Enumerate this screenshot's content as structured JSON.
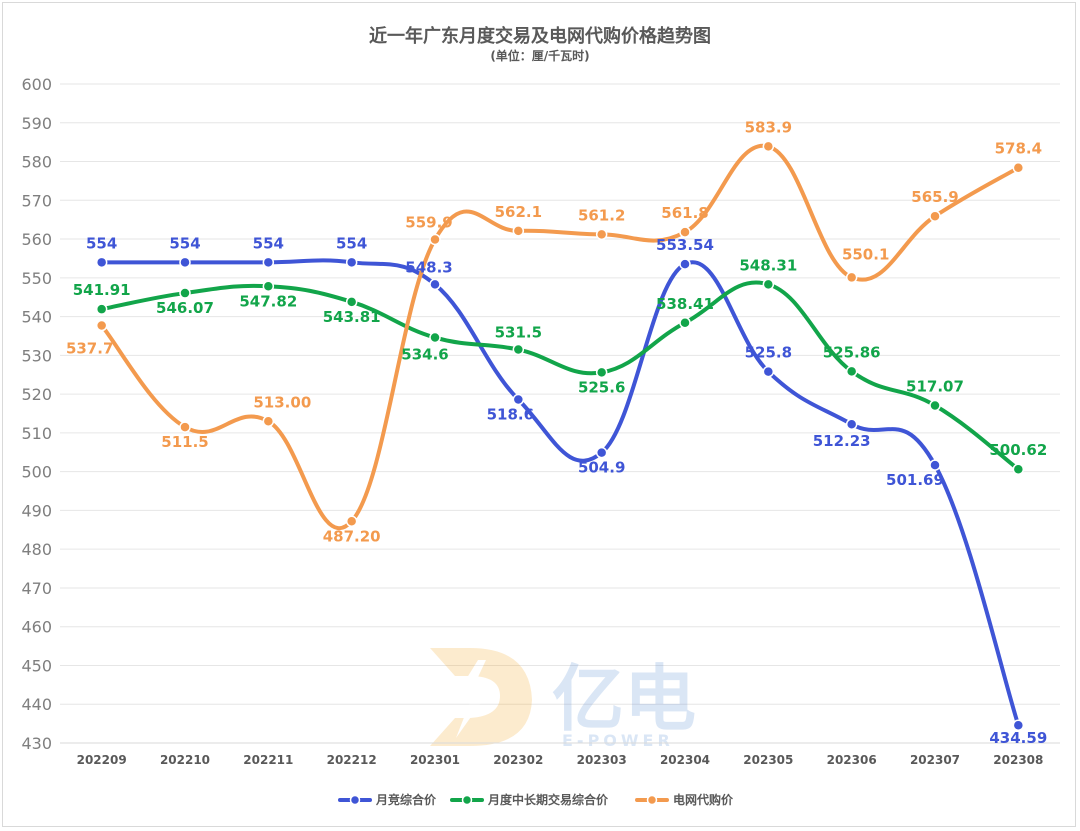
{
  "chart_data": {
    "type": "line",
    "title": "近一年广东月度交易及电网代购价格趋势图",
    "subtitle": "(单位：厘/千瓦时)",
    "categories": [
      "202209",
      "202210",
      "202211",
      "202212",
      "202301",
      "202302",
      "202303",
      "202304",
      "202305",
      "202306",
      "202307",
      "202308"
    ],
    "ylim": [
      430,
      600
    ],
    "yticks": [
      430,
      440,
      450,
      460,
      470,
      480,
      490,
      500,
      510,
      520,
      530,
      540,
      550,
      560,
      570,
      580,
      590,
      600
    ],
    "grid": true,
    "legend_position": "bottom",
    "series": [
      {
        "name": "月竞综合价",
        "color": "#3f55d6",
        "values": [
          554,
          554,
          554,
          554,
          548.3,
          518.6,
          504.9,
          553.54,
          525.8,
          512.23,
          501.69,
          434.59
        ],
        "labels": [
          "554",
          "554",
          "554",
          "554",
          "548.3",
          "518.6",
          "504.9",
          "553.54",
          "525.8",
          "512.23",
          "501.69",
          "434.59"
        ]
      },
      {
        "name": "月度中长期交易综合价",
        "color": "#12a54a",
        "values": [
          541.91,
          546.07,
          547.82,
          543.81,
          534.6,
          531.5,
          525.6,
          538.41,
          548.31,
          525.86,
          517.07,
          500.62
        ],
        "labels": [
          "541.91",
          "546.07",
          "547.82",
          "543.81",
          "534.6",
          "531.5",
          "525.6",
          "538.41",
          "548.31",
          "525.86",
          "517.07",
          "500.62"
        ]
      },
      {
        "name": "电网代购价",
        "color": "#f39a4e",
        "values": [
          537.7,
          511.5,
          513.0,
          487.2,
          559.9,
          562.1,
          561.2,
          561.8,
          583.9,
          550.1,
          565.9,
          578.4
        ],
        "labels": [
          "537.7",
          "511.5",
          "513.00",
          "487.20",
          "559.9",
          "562.1",
          "561.2",
          "561.8",
          "583.9",
          "550.1",
          "565.9",
          "578.4"
        ]
      }
    ]
  },
  "watermark": {
    "brand": "亿电",
    "tagline": "E-POWER"
  }
}
